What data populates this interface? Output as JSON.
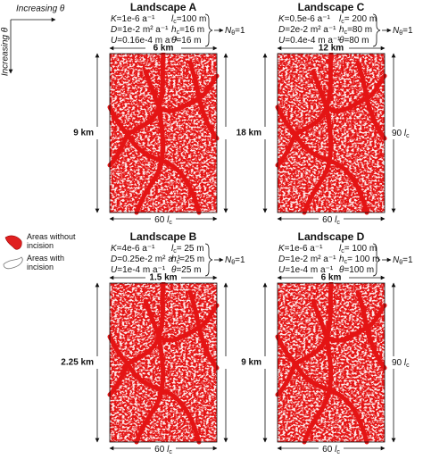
{
  "axes": {
    "top": "Increasing θ",
    "left": "Increasing θ"
  },
  "legend": [
    {
      "label": "Areas without incision"
    },
    {
      "label": "Areas with incision"
    }
  ],
  "panels": [
    {
      "title": "Landscape A",
      "params_left": [
        {
          "sym": "K",
          "rest": "=1e-6 a⁻¹"
        },
        {
          "sym": "D",
          "rest": "=1e-2 m² a⁻¹"
        },
        {
          "sym": "U",
          "rest": "=0.16e-4 m a⁻¹"
        }
      ],
      "params_right": [
        {
          "sym": "l",
          "sub": "c",
          "rest": "=100 m"
        },
        {
          "sym": "h",
          "sub": "c",
          "rest": "=16 m"
        },
        {
          "sym": "θ",
          "rest": "=16 m"
        }
      ],
      "result": {
        "sym": "N",
        "sub": "θ",
        "rest": "=1"
      },
      "width": "6 km",
      "height": "9 km",
      "right_label": {
        "pre": "90 ",
        "sym": "l",
        "sub": "c"
      },
      "bottom_label": {
        "pre": "60 ",
        "sym": "l",
        "sub": "c"
      }
    },
    {
      "title": "Landscape C",
      "params_left": [
        {
          "sym": "K",
          "rest": "=0.5e-6 a⁻¹"
        },
        {
          "sym": "D",
          "rest": "=2e-2 m² a⁻¹"
        },
        {
          "sym": "U",
          "rest": "=0.4e-4 m a⁻¹"
        }
      ],
      "params_right": [
        {
          "sym": "l",
          "sub": "c",
          "rest": "= 200 m"
        },
        {
          "sym": "h",
          "sub": "c",
          "rest": "=80 m"
        },
        {
          "sym": "θ",
          "rest": "=80 m"
        }
      ],
      "result": {
        "sym": "N",
        "sub": "θ",
        "rest": "=1"
      },
      "width": "12 km",
      "height": "18 km",
      "right_label": {
        "pre": "90 ",
        "sym": "l",
        "sub": "c"
      },
      "bottom_label": {
        "pre": "60 ",
        "sym": "l",
        "sub": "c"
      }
    },
    {
      "title": "Landscape B",
      "params_left": [
        {
          "sym": "K",
          "rest": "=4e-6 a⁻¹"
        },
        {
          "sym": "D",
          "rest": "=0.25e-2 m² a⁻¹"
        },
        {
          "sym": "U",
          "rest": "=1e-4 m a⁻¹"
        }
      ],
      "params_right": [
        {
          "sym": "l",
          "sub": "c",
          "rest": "= 25 m"
        },
        {
          "sym": "h",
          "sub": "c",
          "rest": "=25 m"
        },
        {
          "sym": "θ",
          "rest": "=25 m"
        }
      ],
      "result": {
        "sym": "N",
        "sub": "θ",
        "rest": "=1"
      },
      "width": "1.5 km",
      "height": "2.25 km",
      "right_label": {
        "pre": "90 ",
        "sym": "l",
        "sub": "c"
      },
      "bottom_label": {
        "pre": "60 ",
        "sym": "l",
        "sub": "c"
      }
    },
    {
      "title": "Landscape D",
      "params_left": [
        {
          "sym": "K",
          "rest": "=1e-6 a⁻¹"
        },
        {
          "sym": "D",
          "rest": "=1e-2 m² a⁻¹"
        },
        {
          "sym": "U",
          "rest": "=1e-4 m a⁻¹"
        }
      ],
      "params_right": [
        {
          "sym": "l",
          "sub": "c",
          "rest": "= 100 m"
        },
        {
          "sym": "h",
          "sub": "c",
          "rest": "= 100 m"
        },
        {
          "sym": "θ",
          "rest": "=100 m"
        }
      ],
      "result": {
        "sym": "N",
        "sub": "θ",
        "rest": "=1"
      },
      "width": "6 km",
      "height": "9 km",
      "right_label": {
        "pre": "90 ",
        "sym": "l",
        "sub": "c"
      },
      "bottom_label": {
        "pre": "60 ",
        "sym": "l",
        "sub": "c"
      }
    }
  ]
}
